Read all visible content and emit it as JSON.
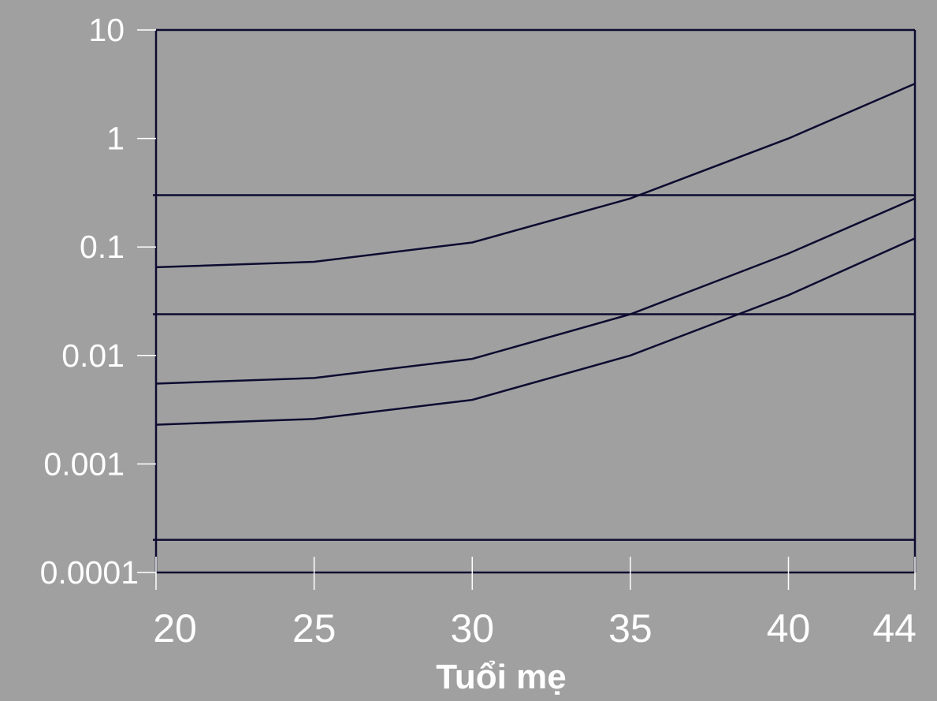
{
  "chart_data": {
    "type": "line",
    "title": "",
    "xlabel": "Tuổi mẹ",
    "ylabel": "",
    "x": [
      20,
      25,
      30,
      35,
      40,
      44
    ],
    "xtick_labels": [
      "20",
      "25",
      "30",
      "35",
      "40",
      "44"
    ],
    "y_scale": "log",
    "ylim": [
      0.0001,
      10
    ],
    "yticks": [
      10,
      1,
      0.1,
      0.01,
      0.001,
      0.0001
    ],
    "ytick_labels": [
      "10",
      "1",
      "0.1",
      "0.01",
      "0.001",
      "0.0001"
    ],
    "grid": false,
    "series": [
      {
        "values": [
          0.065,
          0.073,
          0.11,
          0.28,
          1.0,
          3.2
        ]
      },
      {
        "values": [
          0.0055,
          0.0062,
          0.0093,
          0.024,
          0.087,
          0.28
        ]
      },
      {
        "values": [
          0.0023,
          0.0026,
          0.0039,
          0.01,
          0.036,
          0.12
        ]
      }
    ],
    "reference_lines": [
      0.3,
      0.024,
      0.0002
    ],
    "colors": {
      "background": "#a0a0a0",
      "line": "#0d0b30",
      "text": "#ffffff"
    }
  }
}
